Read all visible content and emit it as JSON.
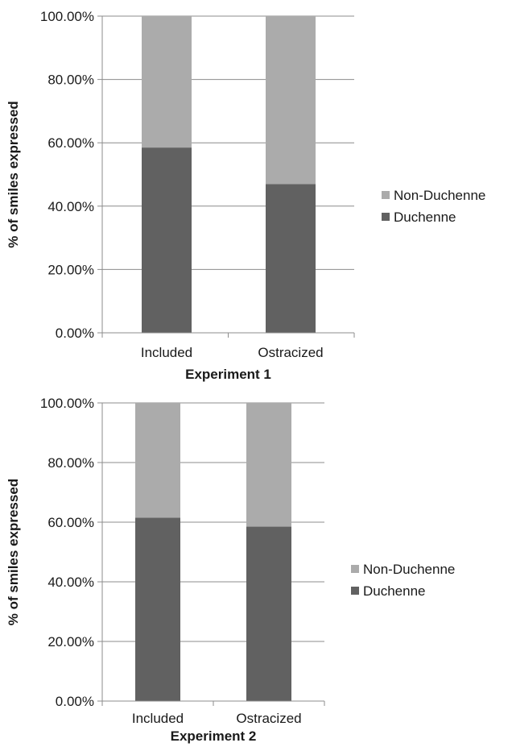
{
  "chart_data": [
    {
      "type": "bar",
      "stacked": true,
      "categories": [
        "Included",
        "Ostracized"
      ],
      "series": [
        {
          "name": "Duchenne",
          "values": [
            58.5,
            47.0
          ],
          "color": "#616161"
        },
        {
          "name": "Non-Duchenne",
          "values": [
            41.5,
            53.0
          ],
          "color": "#ababab"
        }
      ],
      "yticks": [
        "0.00%",
        "20.00%",
        "40.00%",
        "60.00%",
        "80.00%",
        "100.00%"
      ],
      "ylim": [
        0,
        100
      ],
      "xlabel": "Experiment 1",
      "ylabel": "% of smiles expressed",
      "legend": [
        "Non-Duchenne",
        "Duchenne"
      ],
      "legend_position": "right",
      "grid": true
    },
    {
      "type": "bar",
      "stacked": true,
      "categories": [
        "Included",
        "Ostracized"
      ],
      "series": [
        {
          "name": "Duchenne",
          "values": [
            61.5,
            58.5
          ],
          "color": "#616161"
        },
        {
          "name": "Non-Duchenne",
          "values": [
            38.5,
            41.5
          ],
          "color": "#ababab"
        }
      ],
      "yticks": [
        "0.00%",
        "20.00%",
        "40.00%",
        "60.00%",
        "80.00%",
        "100.00%"
      ],
      "ylim": [
        0,
        100
      ],
      "xlabel": "Experiment 2",
      "ylabel": "% of smiles expressed",
      "legend": [
        "Non-Duchenne",
        "Duchenne"
      ],
      "legend_position": "right",
      "grid": true
    }
  ]
}
